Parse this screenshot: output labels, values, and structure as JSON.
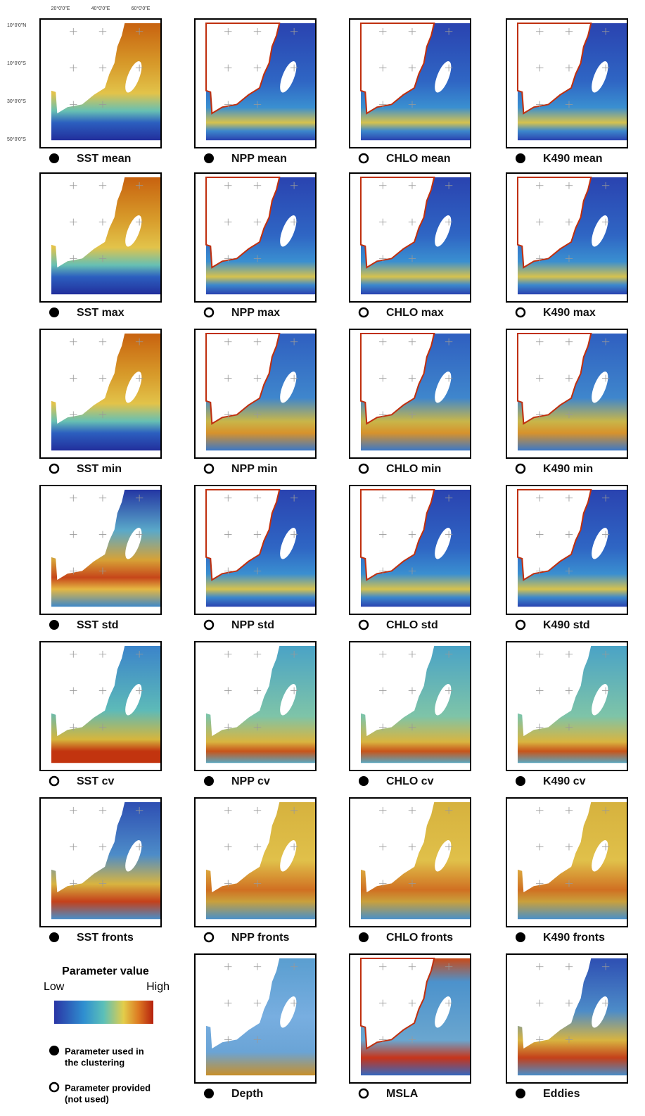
{
  "axis_labels": {
    "top": [
      "20°0'0\"E",
      "40°0'0\"E",
      "60°0'0\"E"
    ],
    "left": [
      "10°0'0\"N",
      "10°0'0\"S",
      "30°0'0\"S",
      "50°0'0\"S"
    ]
  },
  "panels": [
    {
      "label": "SST mean",
      "used": true
    },
    {
      "label": "NPP mean",
      "used": true
    },
    {
      "label": "CHLO mean",
      "used": false
    },
    {
      "label": "K490 mean",
      "used": true
    },
    {
      "label": "SST max",
      "used": true
    },
    {
      "label": "NPP max",
      "used": false
    },
    {
      "label": "CHLO max",
      "used": false
    },
    {
      "label": "K490 max",
      "used": false
    },
    {
      "label": "SST min",
      "used": false
    },
    {
      "label": "NPP min",
      "used": false
    },
    {
      "label": "CHLO min",
      "used": false
    },
    {
      "label": "K490 min",
      "used": false
    },
    {
      "label": "SST std",
      "used": true
    },
    {
      "label": "NPP std",
      "used": false
    },
    {
      "label": "CHLO std",
      "used": false
    },
    {
      "label": "K490 std",
      "used": false
    },
    {
      "label": "SST cv",
      "used": false
    },
    {
      "label": "NPP cv",
      "used": true
    },
    {
      "label": "CHLO cv",
      "used": true
    },
    {
      "label": "K490 cv",
      "used": true
    },
    {
      "label": "SST fronts",
      "used": true
    },
    {
      "label": "NPP fronts",
      "used": false
    },
    {
      "label": "CHLO fronts",
      "used": true
    },
    {
      "label": "K490 fronts",
      "used": true
    },
    {
      "label": "Depth",
      "used": true
    },
    {
      "label": "MSLA",
      "used": false
    },
    {
      "label": "Eddies",
      "used": true
    }
  ],
  "legend": {
    "title": "Parameter value",
    "low": "Low",
    "high": "High",
    "used": [
      "Parameter used in",
      "the clustering"
    ],
    "not_used": [
      "Parameter provided",
      "(not used)"
    ]
  }
}
